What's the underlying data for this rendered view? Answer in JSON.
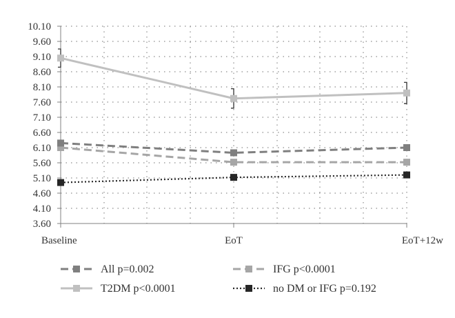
{
  "chart_data": {
    "type": "line",
    "categories": [
      "Baseline",
      "EoT",
      "EoT+12w"
    ],
    "y_ticks": [
      "3.60",
      "4.10",
      "4.60",
      "5.10",
      "5.60",
      "6.10",
      "6.60",
      "7.10",
      "7.60",
      "8.10",
      "8.60",
      "9.10",
      "9.60",
      "10.10"
    ],
    "ylim": [
      3.6,
      10.1
    ],
    "grid": "dotted",
    "legend_position": "bottom",
    "series": [
      {
        "name": "All p=0.002",
        "values": [
          6.25,
          5.93,
          6.1
        ],
        "color": "#7f7f7f",
        "dash": "dashed",
        "error": [
          0,
          0.08,
          0.1
        ]
      },
      {
        "name": "IFG p<0.0001",
        "values": [
          6.1,
          5.62,
          5.62
        ],
        "color": "#a6a6a6",
        "dash": "dashed",
        "error": [
          0,
          0,
          0
        ]
      },
      {
        "name": "T2DM p<0.0001",
        "values": [
          9.05,
          7.72,
          7.9
        ],
        "color": "#c0c0c0",
        "dash": "solid",
        "error": [
          0.3,
          0.32,
          0.35
        ]
      },
      {
        "name": "no DM or IFG p=0.192",
        "values": [
          4.95,
          5.12,
          5.2
        ],
        "color": "#262626",
        "dash": "dotted",
        "error": [
          0,
          0,
          0
        ]
      }
    ]
  }
}
